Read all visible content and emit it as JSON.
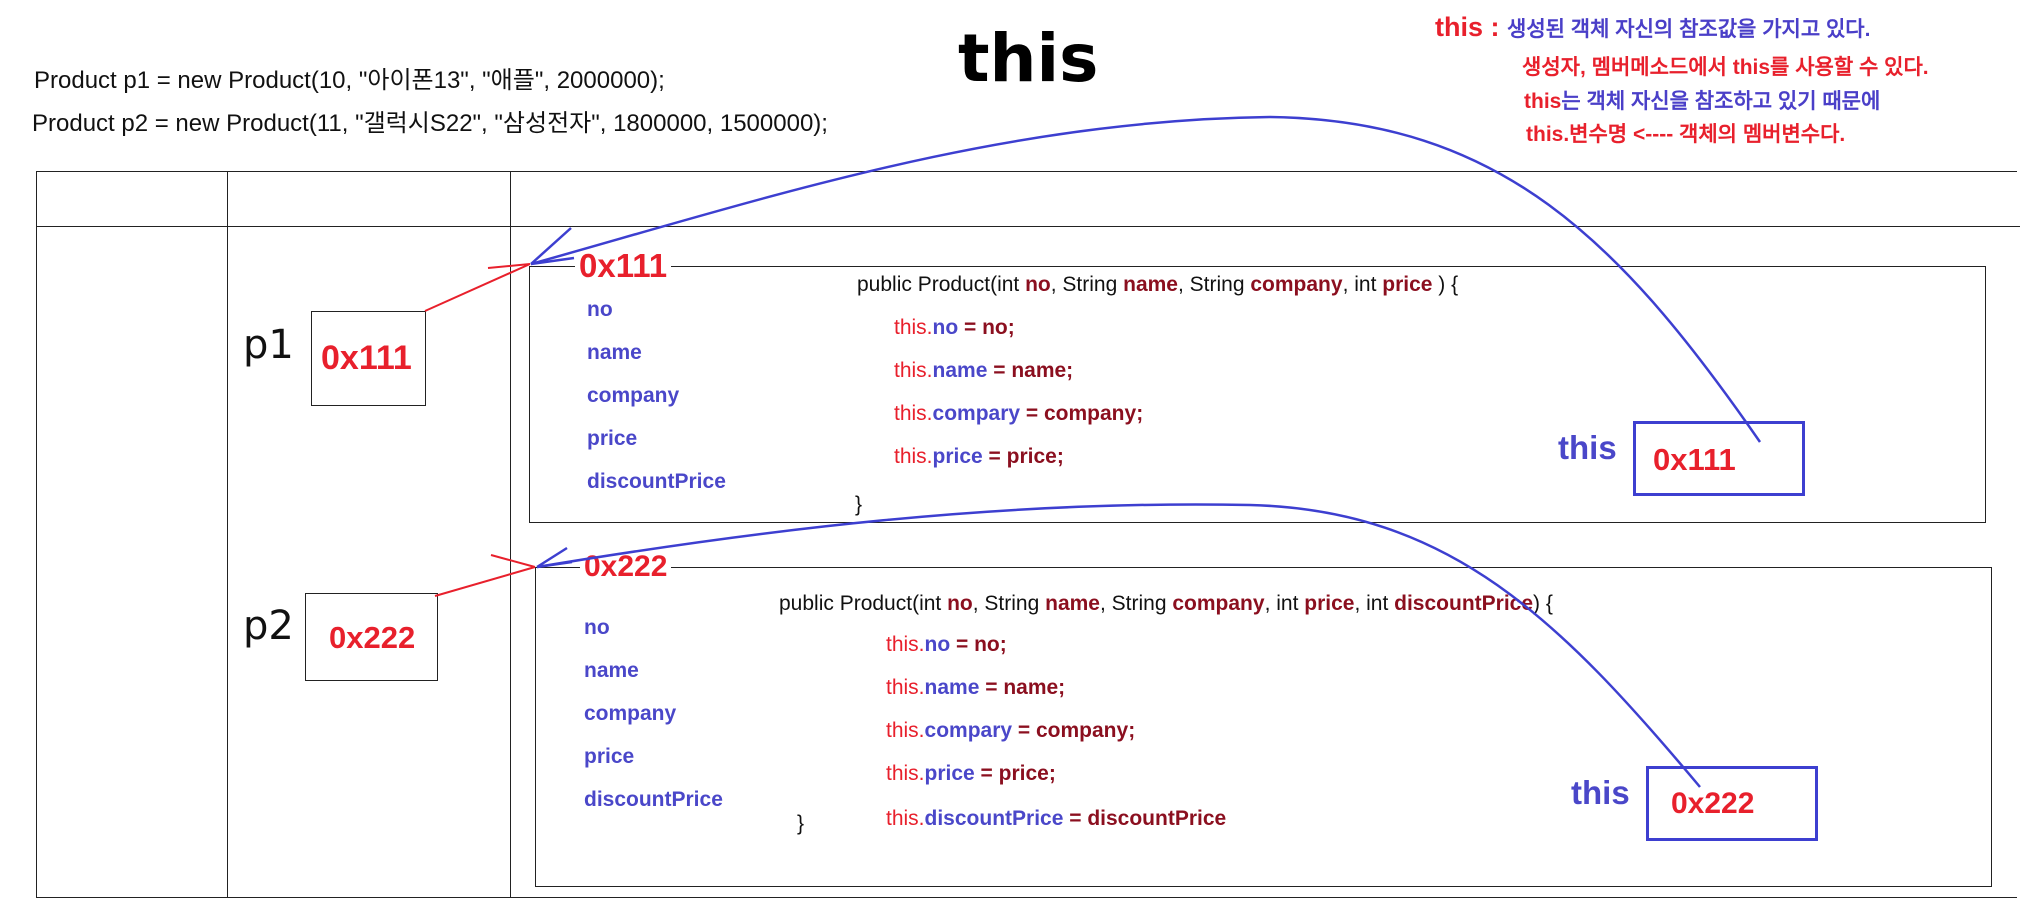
{
  "code": {
    "line1": "Product p1 = new Product(10, \"아이폰13\", \"애플\", 2000000);",
    "line2": "Product p2 = new Product(11, \"갤럭시S22\", \"삼성전자\", 1800000, 1500000);"
  },
  "title": "this",
  "notes": {
    "this_keyword": "this",
    "colon": " : ",
    "line1_text": "생성된 객체 자신의 참조값을 가지고 있다.",
    "line2_a": "생성자, 멤버메소드에서 ",
    "line2_b": "this",
    "line2_c": "를 사용할 수 있다.",
    "line3_a": "this",
    "line3_b": "는 객체 자신을 참조하고 있기 때문에",
    "line4": "this.변수명 <---- 객체의 멤버변수다."
  },
  "stack": {
    "p1_label": "p1",
    "p1_value": "0x111",
    "p2_label": "p2",
    "p2_value": "0x222"
  },
  "objects": {
    "obj1": {
      "address": "0x111",
      "fields": [
        "no",
        "name",
        "company",
        "price",
        "discountPrice"
      ],
      "ctor": {
        "sig_prefix": "public Product(int ",
        "p_no": "no",
        "sep1": ", String ",
        "p_name": "name",
        "sep2": ", String ",
        "p_company": "company",
        "sep3": ", int ",
        "p_price": "price",
        "sig_end": " ) {",
        "lines": [
          {
            "this": "this.",
            "field": "no",
            "eq": " = ",
            "param": "no;"
          },
          {
            "this": "this.",
            "field": "name",
            "eq": " = ",
            "param": "name;"
          },
          {
            "this": "this.",
            "field": "compary",
            "eq": " = ",
            "param": "company;"
          },
          {
            "this": "this.",
            "field": "price",
            "eq": " = ",
            "param": "price;"
          }
        ],
        "close": "}"
      },
      "this_label": "this",
      "this_value": "0x111"
    },
    "obj2": {
      "address": "0x222",
      "fields": [
        "no",
        "name",
        "company",
        "price",
        "discountPrice"
      ],
      "ctor": {
        "sig_prefix": "public Product(int ",
        "p_no": "no",
        "sep1": ", String ",
        "p_name": "name",
        "sep2": ", String ",
        "p_company": "company",
        "sep3": ", int ",
        "p_price": "price",
        "sep4": ", int ",
        "p_discount": "discountPrice",
        "sig_end": ") {",
        "lines": [
          {
            "this": "this.",
            "field": "no",
            "eq": " = ",
            "param": "no;"
          },
          {
            "this": "this.",
            "field": "name",
            "eq": " = ",
            "param": "name;"
          },
          {
            "this": "this.",
            "field": "compary",
            "eq": " = ",
            "param": "company;"
          },
          {
            "this": "this.",
            "field": "price",
            "eq": " = ",
            "param": "price;"
          },
          {
            "this": "this.",
            "field": "discountPrice",
            "eq": " = ",
            "param": "discountPrice"
          }
        ],
        "close": "}"
      },
      "this_label": "this",
      "this_value": "0x222"
    }
  },
  "colors": {
    "red": "#e8202c",
    "blue": "#4a47c9",
    "maroon": "#8b0f1f",
    "pen_blue": "#3d3fd0"
  }
}
